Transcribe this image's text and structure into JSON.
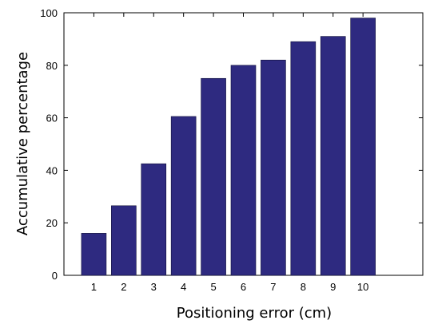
{
  "chart_data": {
    "type": "bar",
    "title": "",
    "xlabel": "Positioning error (cm)",
    "ylabel": "Accumulative percentage",
    "categories": [
      "1",
      "2",
      "3",
      "4",
      "5",
      "6",
      "7",
      "8",
      "9",
      "10"
    ],
    "values": [
      16,
      26.5,
      42.5,
      60.5,
      75,
      80,
      82,
      89,
      91,
      98
    ],
    "ylim": [
      0,
      100
    ],
    "xlim": [
      0,
      12
    ],
    "yticks": [
      "0",
      "20",
      "40",
      "60",
      "80",
      "100"
    ],
    "grid": false,
    "bar_color": "#2e2a80"
  }
}
